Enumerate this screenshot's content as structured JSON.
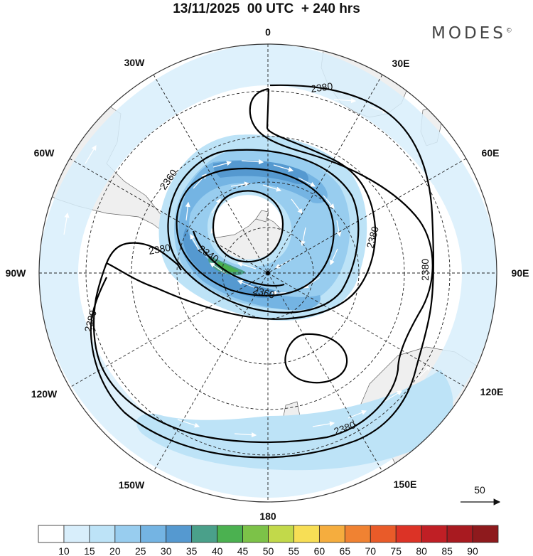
{
  "title": "13/11/2025  00 UTC  + 240 hrs",
  "brand": "MODES",
  "brand_mark": "©",
  "longitude_labels": {
    "lon_0": "0",
    "lon_30e": "30E",
    "lon_60e": "60E",
    "lon_90e": "90E",
    "lon_120e": "120E",
    "lon_150e": "150E",
    "lon_180": "180",
    "lon_150w": "150W",
    "lon_120w": "120W",
    "lon_90w": "90W",
    "lon_60w": "60W",
    "lon_30w": "30W"
  },
  "contour_labels": {
    "c1": "2380",
    "c2": "2360",
    "c3": "2380",
    "c4": "2340",
    "c5": "2360",
    "c6": "2380",
    "c7": "2380",
    "c8": "2380",
    "c9": "2380"
  },
  "reference_vector": "50",
  "colorbar": {
    "labels": [
      "10",
      "15",
      "20",
      "25",
      "30",
      "35",
      "40",
      "45",
      "50",
      "55",
      "60",
      "65",
      "70",
      "75",
      "80",
      "85",
      "90"
    ],
    "colors": [
      "#ffffff",
      "#d8eefb",
      "#bde3f7",
      "#98cdef",
      "#74b4e3",
      "#5599d0",
      "#4aa08a",
      "#4bb150",
      "#7cc248",
      "#c2d94a",
      "#f7de55",
      "#f5ad3e",
      "#f08232",
      "#e95b29",
      "#dc3326",
      "#c01f25",
      "#a81a20",
      "#8e1a1d"
    ]
  },
  "land_color": "#efefef",
  "wind_color": "#3e84bf"
}
